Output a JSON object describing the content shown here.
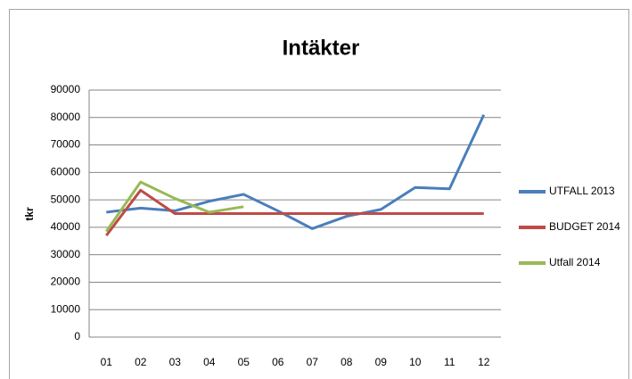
{
  "chart_data": {
    "type": "line",
    "title": "Intäkter",
    "y_label": "tkr",
    "categories": [
      "01",
      "02",
      "03",
      "04",
      "05",
      "06",
      "07",
      "08",
      "09",
      "10",
      "11",
      "12"
    ],
    "series": [
      {
        "name": "UTFALL 2013",
        "color": "#4a7ebb",
        "values": [
          45500,
          47000,
          46000,
          49500,
          52000,
          46000,
          39500,
          44000,
          46500,
          54500,
          54000,
          81000
        ]
      },
      {
        "name": "BUDGET 2014",
        "color": "#be4b48",
        "values": [
          37000,
          53500,
          45000,
          45000,
          45000,
          45000,
          45000,
          45000,
          45000,
          45000,
          45000,
          45000
        ]
      },
      {
        "name": "Utfall 2014",
        "color": "#98b954",
        "values": [
          38500,
          56500,
          50500,
          45500,
          47500,
          null,
          null,
          null,
          null,
          null,
          null,
          null
        ]
      }
    ],
    "ylim": [
      0,
      90000
    ],
    "yticks": [
      0,
      10000,
      20000,
      30000,
      40000,
      50000,
      60000,
      70000,
      80000,
      90000
    ],
    "grid": true,
    "legend": "right"
  }
}
